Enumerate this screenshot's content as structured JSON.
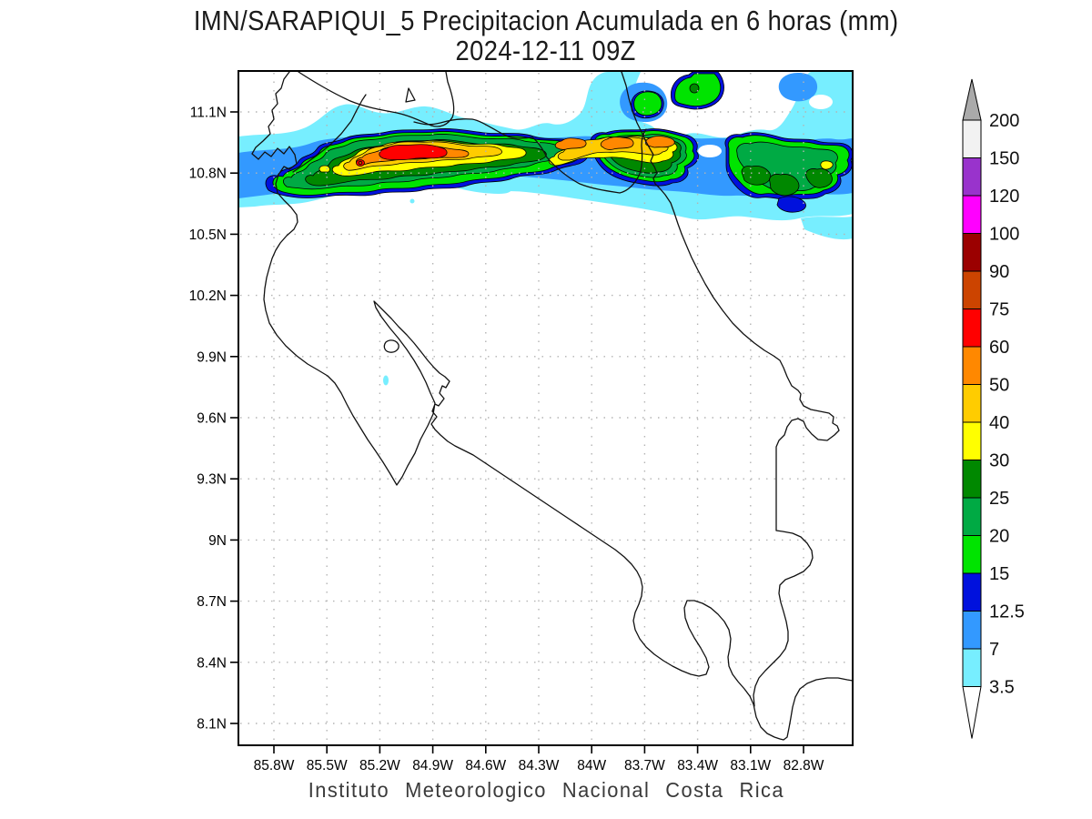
{
  "title": {
    "line1": "IMN/SARAPIQUI_5 Precipitacion Acumulada en 6 horas (mm)",
    "line2": "2024-12-11 09Z"
  },
  "footer": {
    "caption": "Instituto Meteorologico Nacional Costa Rica"
  },
  "map": {
    "lat_ticks": [
      "11.1N",
      "10.8N",
      "10.5N",
      "10.2N",
      "9.9N",
      "9.6N",
      "9.3N",
      "9N",
      "8.7N",
      "8.4N",
      "8.1N"
    ],
    "lon_ticks": [
      "85.8W",
      "85.5W",
      "85.2W",
      "84.9W",
      "84.6W",
      "84.3W",
      "84W",
      "83.7W",
      "83.4W",
      "83.1W",
      "82.8W"
    ]
  },
  "colorbar": {
    "labels": [
      "200",
      "150",
      "120",
      "100",
      "90",
      "75",
      "60",
      "50",
      "40",
      "30",
      "25",
      "20",
      "15",
      "12.5",
      "7",
      "3.5"
    ],
    "band_colors": [
      "#f2f2f2",
      "#9933cc",
      "#ff00ff",
      "#9b0000",
      "#cc4400",
      "#ff0000",
      "#ff8800",
      "#ffcc00",
      "#ffff00",
      "#008800",
      "#00aa44",
      "#00e400",
      "#0011dd",
      "#3399ff",
      "#77eeff"
    ],
    "above_color": "#aaaaaa",
    "below_color": "#ffffff"
  },
  "chart_data": {
    "type": "heatmap",
    "subtype": "filled-contour-precipitation-map",
    "source": "IMN/SARAPIQUI_5",
    "title": "IMN/SARAPIQUI_5 Precipitacion Acumulada en 6 horas (mm)",
    "valid_time": "2024-12-11 09Z",
    "units": "mm",
    "accumulation_hours": 6,
    "region": "Costa Rica",
    "lon_axis": {
      "ticks_deg_west": [
        85.8,
        85.5,
        85.2,
        84.9,
        84.6,
        84.3,
        84.0,
        83.7,
        83.4,
        83.1,
        82.8
      ],
      "range_deg_west": [
        86.0,
        82.5
      ]
    },
    "lat_axis": {
      "ticks_deg_north": [
        11.1,
        10.8,
        10.5,
        10.2,
        9.9,
        9.6,
        9.3,
        9.0,
        8.7,
        8.4,
        8.1
      ],
      "range_deg_north": [
        7.95,
        11.35
      ]
    },
    "grid": "dotted",
    "legend_position": "right-colorbar",
    "contour_levels_mm": [
      3.5,
      7,
      12.5,
      15,
      20,
      25,
      30,
      40,
      50,
      60,
      75,
      90,
      100,
      120,
      150,
      200
    ],
    "level_colors": {
      "3.5": "#77eeff",
      "7": "#3399ff",
      "12.5": "#0011dd",
      "15": "#00e400",
      "20": "#00aa44",
      "25": "#008800",
      "30": "#ffff00",
      "40": "#ffcc00",
      "50": "#ff8800",
      "60": "#ff0000",
      "75": "#cc4400",
      "90": "#9b0000",
      "100": "#ff00ff",
      "120": "#9933cc",
      "150": "#f2f2f2",
      "200": "#aaaaaa"
    },
    "features": [
      {
        "description": "East-west band of heavy rain along the northern border (Caribbean slope / Sarapiqui area)",
        "lat_span_deg_north": [
          10.55,
          11.0
        ],
        "lon_span_deg_west": [
          86.0,
          82.5
        ]
      },
      {
        "description": "Western maximum core",
        "center": {
          "lon_deg_west": 85.0,
          "lat_deg_north": 10.9
        },
        "peak_mm": "60-75"
      },
      {
        "description": "Central maxima (three orange cores)",
        "centers_lon_deg_west": [
          84.15,
          83.85,
          83.6
        ],
        "lat_deg_north": 10.9,
        "peak_mm": "50-60"
      },
      {
        "description": "Eastern green rain mass near Caribbean coast",
        "center": {
          "lon_deg_west": 82.85,
          "lat_deg_north": 10.7
        },
        "peak_mm": "30-40"
      },
      {
        "description": "Rest of the country",
        "peak_mm": "< 3.5"
      }
    ]
  }
}
